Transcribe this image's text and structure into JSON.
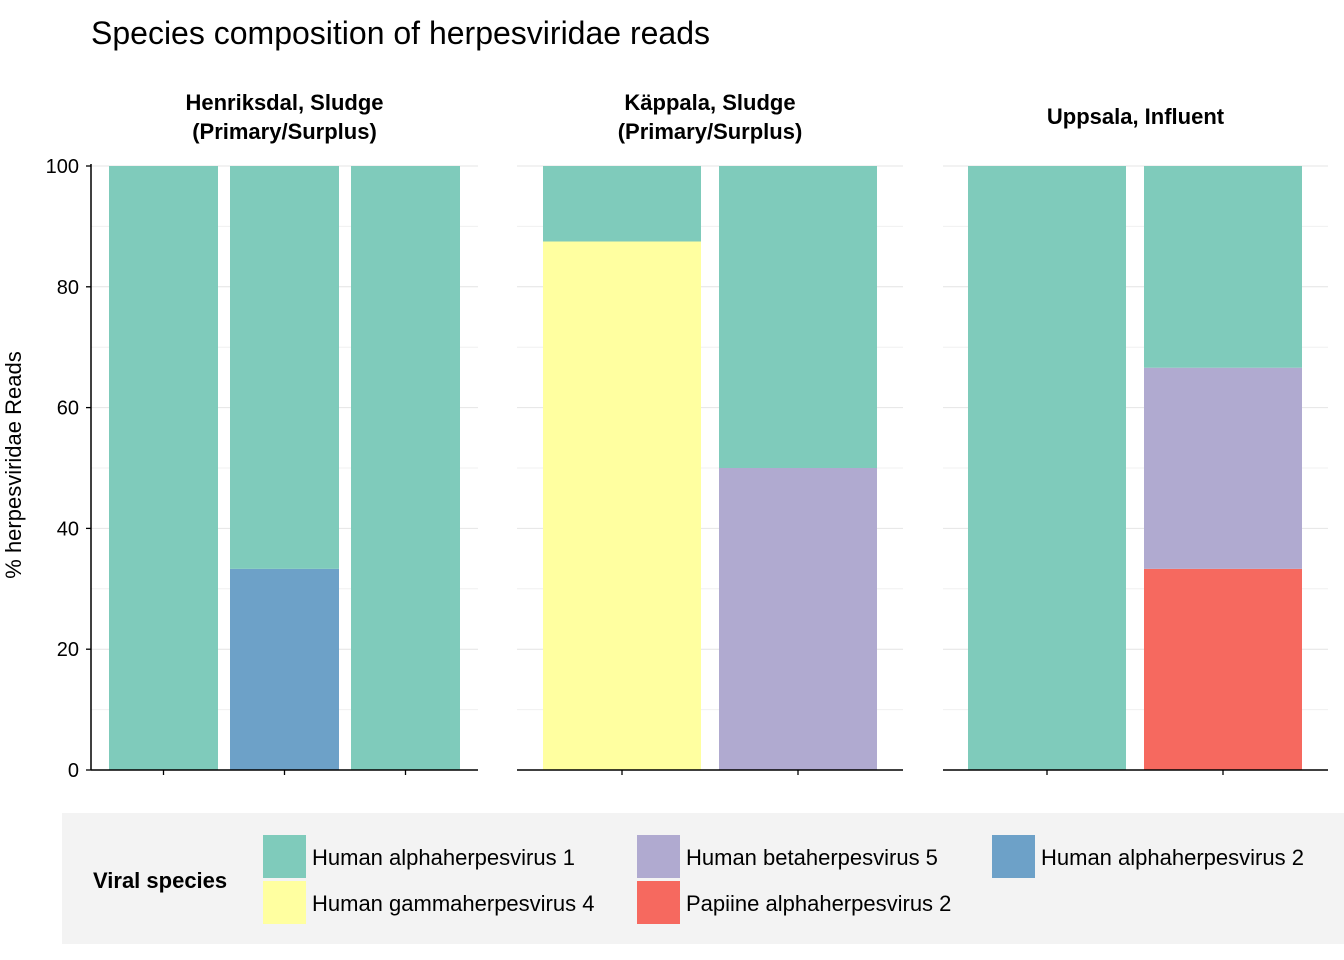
{
  "chart_data": {
    "type": "bar",
    "stacked": true,
    "title": "Species composition of herpesviridae reads",
    "ylabel": "% herpesviridae Reads",
    "ylim": [
      0,
      100
    ],
    "yticks": [
      0,
      20,
      40,
      60,
      80,
      100
    ],
    "grid": true,
    "legend": {
      "title": "Viral species",
      "placement": "bottom",
      "entries": [
        {
          "name": "Human alphaherpesvirus 1",
          "color": "#7fcbbb"
        },
        {
          "name": "Human betaherpesvirus 5",
          "color": "#b0aad0"
        },
        {
          "name": "Human alphaherpesvirus 2",
          "color": "#6da1c8"
        },
        {
          "name": "Human gammaherpesvirus 4",
          "color": "#ffffa0"
        },
        {
          "name": "Papiine alphaherpesvirus 2",
          "color": "#f6695f"
        }
      ]
    },
    "facets": [
      {
        "title_lines": [
          "Henriksdal, Sludge",
          "(Primary/Surplus)"
        ],
        "bars": [
          [
            {
              "species": "Human alphaherpesvirus 1",
              "value": 100
            }
          ],
          [
            {
              "species": "Human alphaherpesvirus 2",
              "value": 33.3
            },
            {
              "species": "Human alphaherpesvirus 1",
              "value": 66.7
            }
          ],
          [
            {
              "species": "Human alphaherpesvirus 1",
              "value": 100
            }
          ]
        ]
      },
      {
        "title_lines": [
          "Käppala, Sludge",
          "(Primary/Surplus)"
        ],
        "bars": [
          [
            {
              "species": "Human gammaherpesvirus 4",
              "value": 87.5
            },
            {
              "species": "Human alphaherpesvirus 1",
              "value": 12.5
            }
          ],
          [
            {
              "species": "Human betaherpesvirus 5",
              "value": 50
            },
            {
              "species": "Human alphaherpesvirus 1",
              "value": 50
            }
          ]
        ]
      },
      {
        "title_lines": [
          "Uppsala, Influent"
        ],
        "bars": [
          [
            {
              "species": "Human alphaherpesvirus 1",
              "value": 100
            }
          ],
          [
            {
              "species": "Papiine alphaherpesvirus 2",
              "value": 33.3
            },
            {
              "species": "Human betaherpesvirus 5",
              "value": 33.3
            },
            {
              "species": "Human alphaherpesvirus 1",
              "value": 33.4
            }
          ]
        ]
      }
    ]
  }
}
